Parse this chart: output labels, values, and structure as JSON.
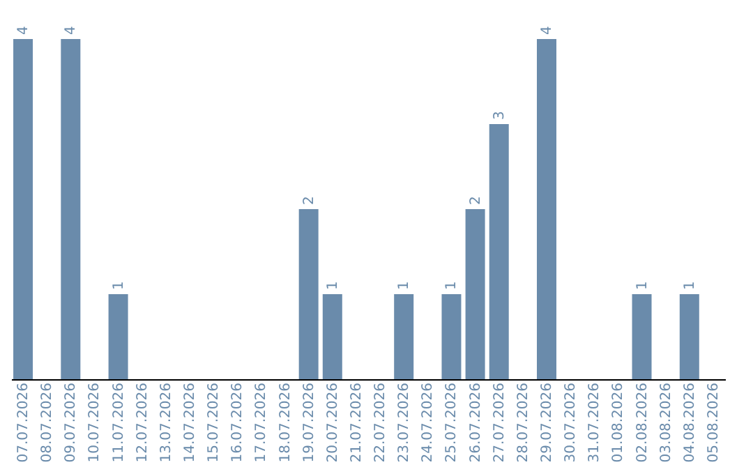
{
  "chart_data": {
    "type": "bar",
    "categories": [
      "07.07.2026",
      "08.07.2026",
      "09.07.2026",
      "10.07.2026",
      "11.07.2026",
      "12.07.2026",
      "13.07.2026",
      "14.07.2026",
      "15.07.2026",
      "16.07.2026",
      "17.07.2026",
      "18.07.2026",
      "19.07.2026",
      "20.07.2026",
      "21.07.2026",
      "22.07.2026",
      "23.07.2026",
      "24.07.2026",
      "25.07.2026",
      "26.07.2026",
      "27.07.2026",
      "28.07.2026",
      "29.07.2026",
      "30.07.2026",
      "31.07.2026",
      "01.08.2026",
      "02.08.2026",
      "03.08.2026",
      "04.08.2026",
      "05.08.2026"
    ],
    "values": [
      4,
      0,
      4,
      0,
      1,
      0,
      0,
      0,
      0,
      0,
      0,
      0,
      2,
      1,
      0,
      0,
      1,
      0,
      1,
      2,
      3,
      0,
      4,
      0,
      0,
      0,
      1,
      0,
      1,
      0
    ],
    "value_labels": [
      "4",
      null,
      "4",
      null,
      "1",
      null,
      null,
      null,
      null,
      null,
      null,
      null,
      "2",
      "1",
      null,
      null,
      "1",
      null,
      "1",
      "2",
      "3",
      null,
      "4",
      null,
      null,
      null,
      "1",
      null,
      "1",
      null
    ],
    "color": "#6a8bab",
    "grid": false
  }
}
